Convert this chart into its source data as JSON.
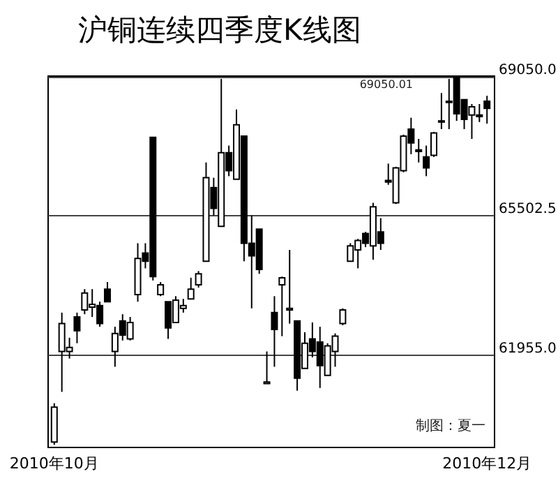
{
  "chart_data": {
    "type": "candlestick",
    "title": "沪铜连续四季度K线图",
    "categories": [
      "2010年10月",
      null,
      null,
      null,
      null,
      null,
      null,
      null,
      null,
      null,
      null,
      null,
      null,
      null,
      null,
      null,
      null,
      null,
      null,
      null,
      null,
      null,
      null,
      null,
      null,
      null,
      null,
      null,
      null,
      null,
      null,
      null,
      null,
      null,
      null,
      null,
      null,
      null,
      null,
      null,
      null,
      null,
      null,
      null,
      null,
      null,
      null,
      null,
      null,
      null,
      null,
      null,
      null,
      null,
      null,
      null,
      null,
      "2010年12月"
    ],
    "ohlc": [
      [
        59720,
        60710,
        59650,
        60610
      ],
      [
        62030,
        63020,
        61000,
        62740
      ],
      [
        62030,
        62380,
        61850,
        62130
      ],
      [
        62910,
        63020,
        62240,
        62560
      ],
      [
        63090,
        63620,
        62980,
        63520
      ],
      [
        63160,
        63620,
        62910,
        63230
      ],
      [
        63200,
        63300,
        62660,
        62740
      ],
      [
        63620,
        63800,
        63300,
        63300
      ],
      [
        62030,
        62660,
        61640,
        62490
      ],
      [
        62810,
        62980,
        62310,
        62450
      ],
      [
        62350,
        62910,
        62310,
        62770
      ],
      [
        63480,
        64790,
        63300,
        64400
      ],
      [
        64540,
        64790,
        64150,
        64330
      ],
      [
        67490,
        67490,
        63840,
        63940
      ],
      [
        63480,
        63800,
        63440,
        63730
      ],
      [
        63300,
        63300,
        62350,
        62630
      ],
      [
        62770,
        63440,
        62770,
        63340
      ],
      [
        63130,
        63370,
        63020,
        63200
      ],
      [
        63370,
        63910,
        63370,
        63620
      ],
      [
        63730,
        64080,
        63660,
        64010
      ],
      [
        64330,
        66850,
        64330,
        66460
      ],
      [
        66210,
        66460,
        65500,
        65680
      ],
      [
        65220,
        68980,
        65220,
        67100
      ],
      [
        67100,
        67280,
        66500,
        66640
      ],
      [
        66420,
        68200,
        66420,
        67810
      ],
      [
        67520,
        67520,
        64330,
        64790
      ],
      [
        64790,
        65500,
        63130,
        64470
      ],
      [
        65150,
        65150,
        64010,
        64120
      ],
      [
        61210,
        62030,
        61210,
        61250
      ],
      [
        63020,
        63440,
        61640,
        62590
      ],
      [
        63730,
        63940,
        62420,
        63910
      ],
      [
        63090,
        64620,
        62740,
        63130
      ],
      [
        62810,
        62810,
        61030,
        61350
      ],
      [
        61600,
        62520,
        61600,
        62240
      ],
      [
        62350,
        62770,
        61880,
        62030
      ],
      [
        62270,
        62660,
        61100,
        61670
      ],
      [
        61420,
        62240,
        61420,
        62170
      ],
      [
        62030,
        62490,
        61640,
        62420
      ],
      [
        62740,
        63130,
        62700,
        63090
      ],
      [
        64330,
        64790,
        64330,
        64720
      ],
      [
        64620,
        64900,
        64150,
        64860
      ],
      [
        65040,
        65080,
        64690,
        64790
      ],
      [
        64720,
        65820,
        64370,
        65720
      ],
      [
        65080,
        65430,
        64620,
        64790
      ],
      [
        66390,
        66820,
        66280,
        66350
      ],
      [
        65820,
        66740,
        65790,
        66710
      ],
      [
        66640,
        67560,
        66600,
        67520
      ],
      [
        67700,
        67990,
        67060,
        67350
      ],
      [
        67170,
        67450,
        66850,
        67130
      ],
      [
        66990,
        67280,
        66500,
        66710
      ],
      [
        67030,
        67630,
        66990,
        67600
      ],
      [
        67880,
        68620,
        67700,
        67910
      ],
      [
        68380,
        68980,
        67700,
        68410
      ],
      [
        69040,
        69050.01,
        67910,
        68090
      ],
      [
        68450,
        68450,
        67700,
        67950
      ],
      [
        68060,
        68340,
        67450,
        68270
      ],
      [
        68060,
        68340,
        67880,
        68020
      ],
      [
        68410,
        68550,
        67840,
        68230
      ]
    ],
    "ylim": [
      59600,
      69070
    ],
    "yticks": [
      {
        "value": 61955,
        "label": "61955.0"
      },
      {
        "value": 65502.5,
        "label": "65502.5"
      },
      {
        "value": 69050,
        "label": "69050.0"
      }
    ],
    "grid": "y",
    "annotations": [
      "69050.01",
      "制图：夏一"
    ]
  }
}
